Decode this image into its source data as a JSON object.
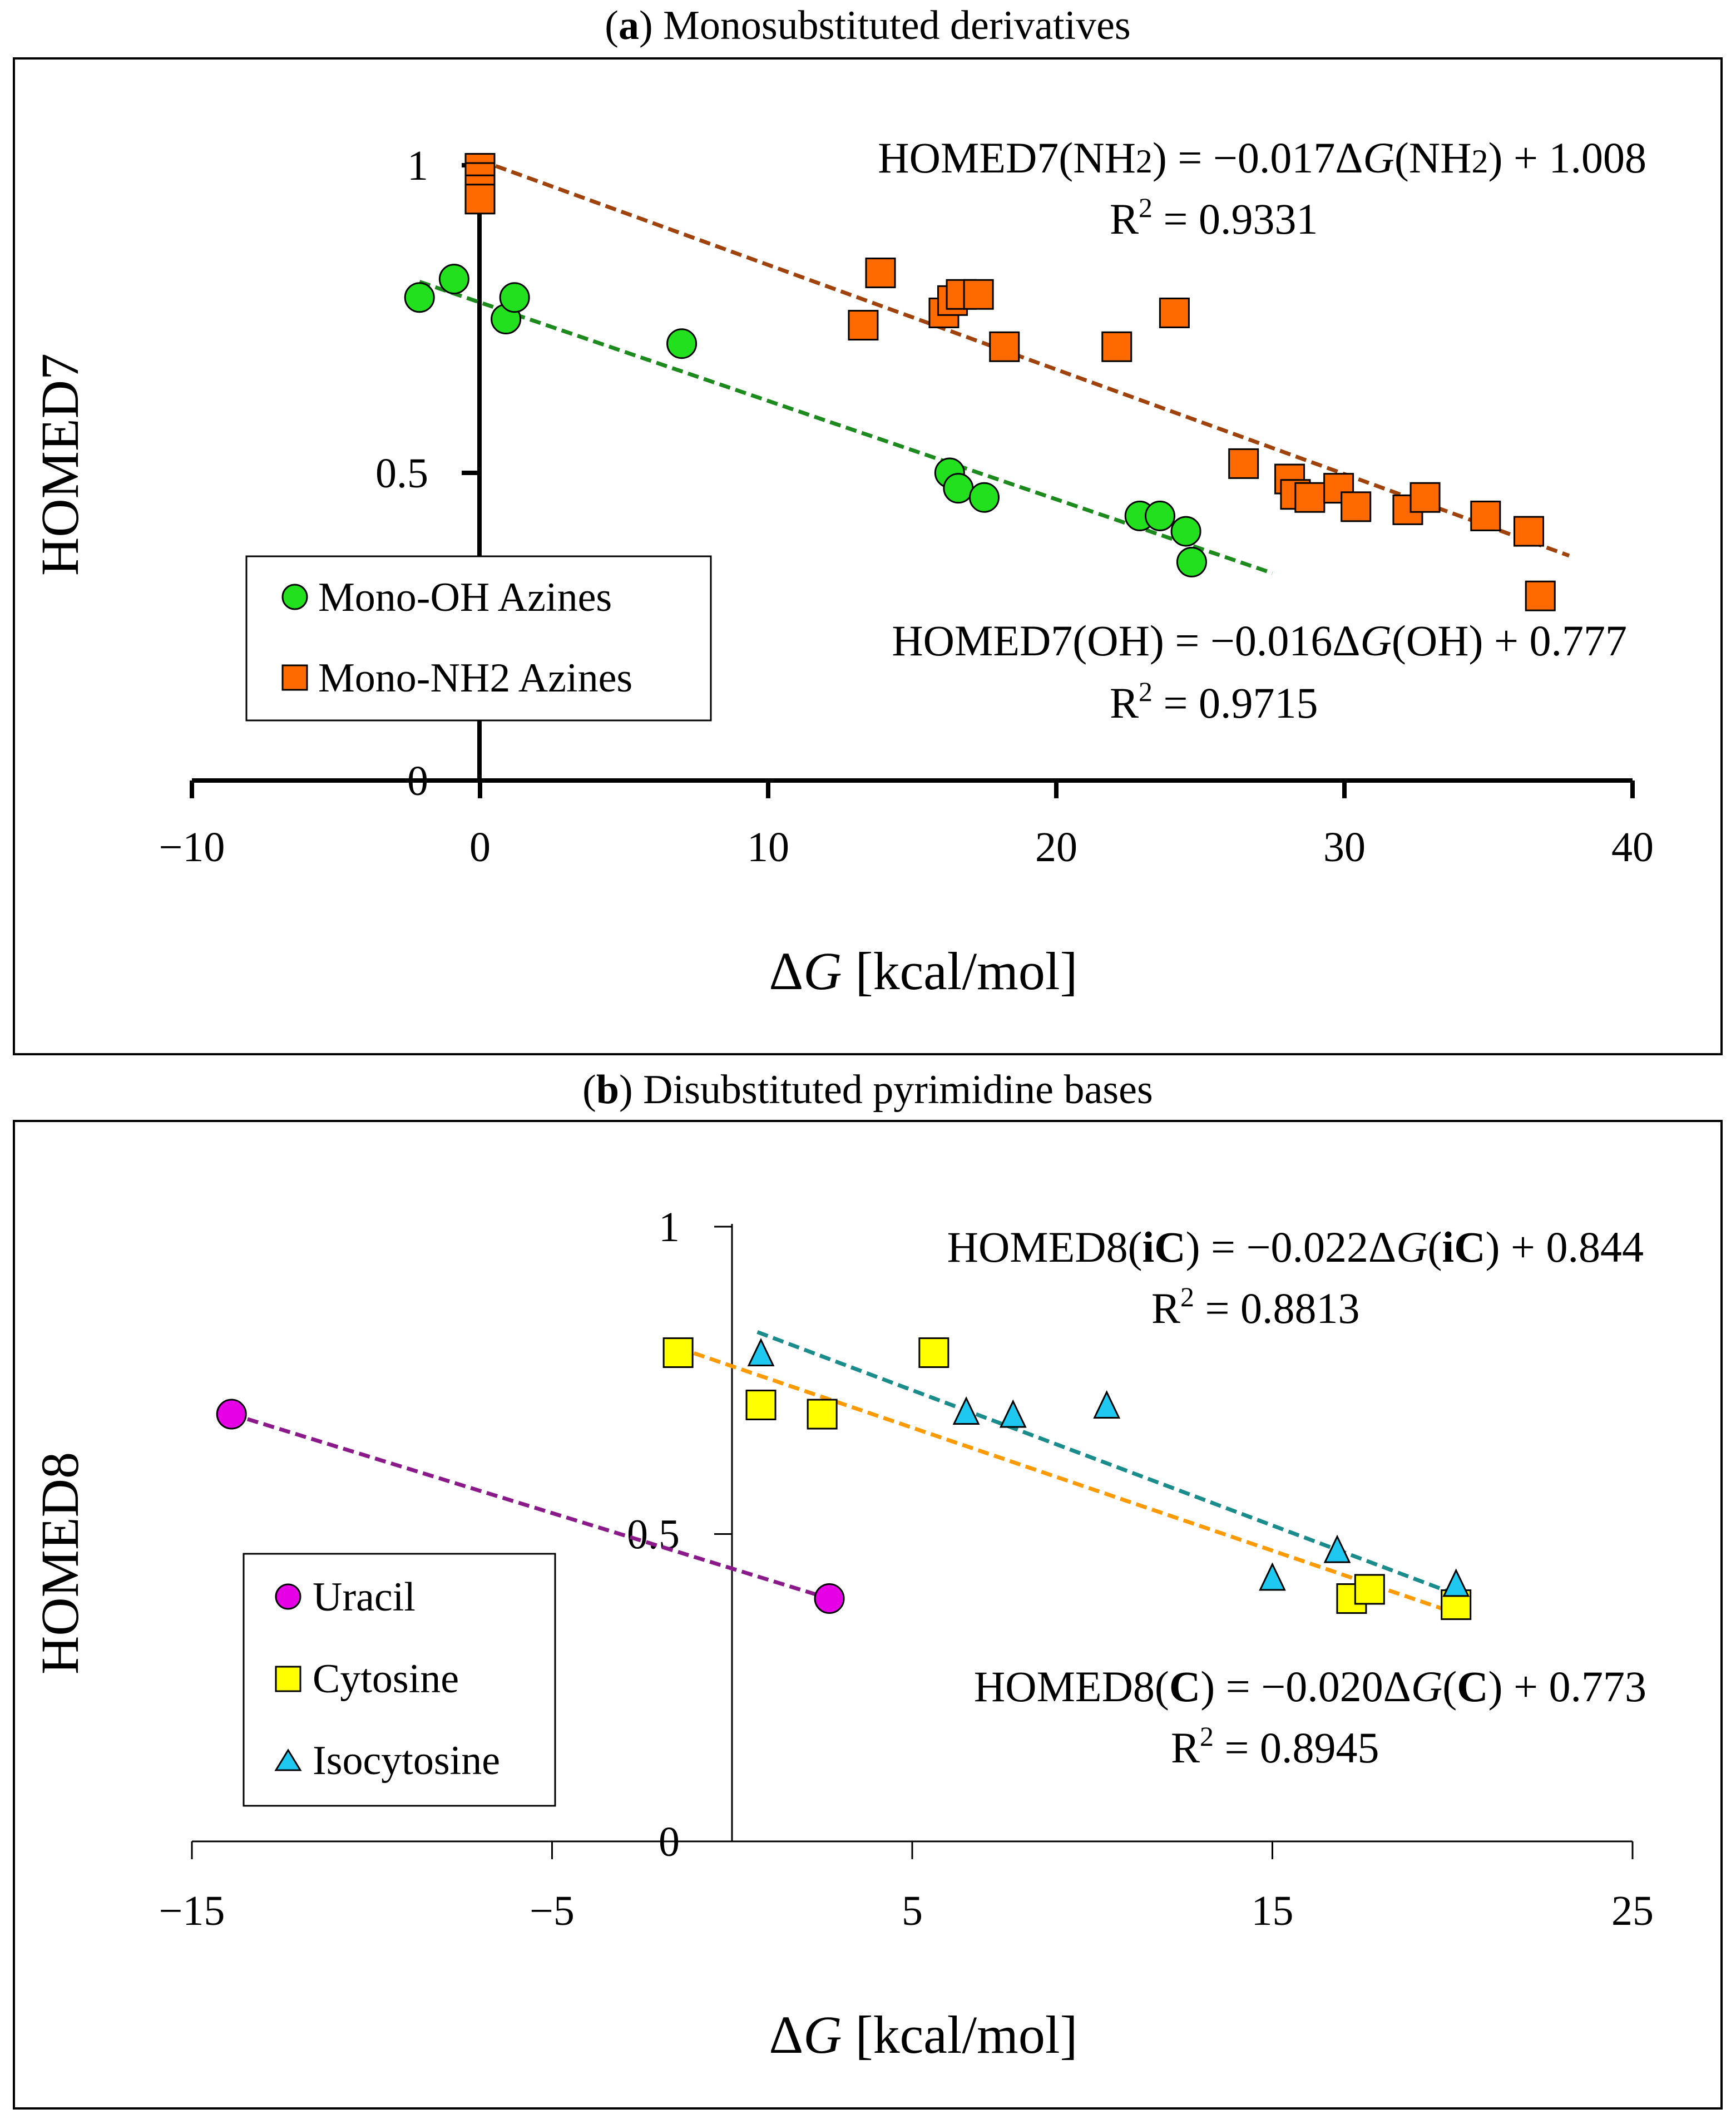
{
  "colors": {
    "oh": "#22e01e",
    "nh2": "#ff6a00",
    "oh_line": "#1d8a1d",
    "nh2_line": "#a0420c",
    "uracil": "#e600e6",
    "cytosine": "#ffff00",
    "isocytosine": "#1ec8f0",
    "uracil_line": "#8a1a8a",
    "cytosine_line": "#ff9a00",
    "isocytosine_line": "#1a8c8c"
  },
  "chart_data": [
    {
      "id": "a",
      "type": "scatter",
      "title_prefix": "(",
      "title_bold": "a",
      "title_rest": ") Monosubstituted derivatives",
      "xlabel_delta": "Δ",
      "xlabel_var": "G",
      "xlabel_unit": " [kcal/mol]",
      "ylabel": "HOMED7",
      "xlim": [
        -10,
        40
      ],
      "ylim": [
        0,
        1
      ],
      "xticks": [
        -10,
        0,
        10,
        20,
        30,
        40
      ],
      "xtick_labels": [
        "−10",
        "0",
        "10",
        "20",
        "30",
        "40"
      ],
      "yticks": [
        0,
        0.5,
        1
      ],
      "ytick_labels": [
        "0",
        "0.5",
        "1"
      ],
      "legend_position": "bottom-left",
      "series": [
        {
          "name": "Mono-OH Azines",
          "marker": "circle",
          "color_key": "oh",
          "x": [
            -2.1,
            -0.9,
            0.9,
            1.2,
            7.0,
            16.3,
            16.6,
            17.5,
            22.9,
            23.6,
            24.5,
            24.7
          ],
          "y": [
            0.785,
            0.815,
            0.75,
            0.785,
            0.71,
            0.5,
            0.475,
            0.46,
            0.43,
            0.43,
            0.405,
            0.355
          ]
        },
        {
          "name": "Mono-NH2 Azines",
          "marker": "square",
          "color_key": "nh2",
          "x": [
            0.0,
            0.0,
            0.0,
            0.0,
            13.3,
            13.9,
            16.1,
            16.4,
            16.7,
            17.3,
            18.2,
            22.1,
            24.1,
            26.5,
            28.1,
            28.3,
            28.8,
            29.8,
            30.4,
            32.2,
            32.8,
            34.9,
            36.4,
            36.8
          ],
          "y": [
            0.995,
            0.98,
            0.96,
            0.945,
            0.74,
            0.825,
            0.76,
            0.78,
            0.79,
            0.79,
            0.705,
            0.705,
            0.76,
            0.515,
            0.49,
            0.465,
            0.46,
            0.475,
            0.445,
            0.44,
            0.46,
            0.43,
            0.405,
            0.3
          ]
        }
      ],
      "fits": [
        {
          "series": "Mono-NH2 Azines",
          "color_key": "nh2_line",
          "slope": -0.017,
          "intercept": 1.008,
          "x_range": [
            0,
            37.8
          ],
          "equation_parts": [
            "HOMED7(NH",
            "2",
            ") = −0.017Δ",
            "G",
            "(NH",
            "2",
            ") + 1.008"
          ],
          "r2_value": " = 0.9331"
        },
        {
          "series": "Mono-OH Azines",
          "color_key": "oh_line",
          "slope": -0.016,
          "intercept": 0.777,
          "x_range": [
            -2.1,
            27.5
          ],
          "equation_parts": [
            "HOMED7(OH) = −0.016Δ",
            "G",
            "(OH) + 0.777"
          ],
          "r2_value": " = 0.9715"
        }
      ]
    },
    {
      "id": "b",
      "type": "scatter",
      "title_prefix": "(",
      "title_bold": "b",
      "title_rest": ") Disubstituted pyrimidine bases",
      "xlabel_delta": "Δ",
      "xlabel_var": "G",
      "xlabel_unit": " [kcal/mol]",
      "ylabel": "HOMED8",
      "xlim": [
        -15,
        25
      ],
      "ylim": [
        0,
        1
      ],
      "xticks": [
        -15,
        -5,
        5,
        15,
        25
      ],
      "xtick_labels": [
        "−15",
        "−5",
        "5",
        "15",
        "25"
      ],
      "yticks": [
        0,
        0.5,
        1
      ],
      "ytick_labels": [
        "0",
        "0.5",
        "1"
      ],
      "legend_position": "bottom-left",
      "series": [
        {
          "name": "Uracil",
          "marker": "circle",
          "color_key": "uracil",
          "x": [
            -13.9,
            2.7
          ],
          "y": [
            0.695,
            0.395
          ]
        },
        {
          "name": "Cytosine",
          "marker": "square",
          "color_key": "cytosine",
          "x": [
            -1.5,
            0.8,
            2.5,
            5.6,
            17.2,
            17.7,
            20.1
          ],
          "y": [
            0.795,
            0.71,
            0.695,
            0.795,
            0.395,
            0.41,
            0.385
          ]
        },
        {
          "name": "Isocytosine",
          "marker": "triangle",
          "color_key": "isocytosine",
          "x": [
            0.8,
            6.5,
            7.8,
            10.4,
            15.0,
            16.8,
            20.1
          ],
          "y": [
            0.795,
            0.7,
            0.695,
            0.71,
            0.43,
            0.475,
            0.42
          ]
        }
      ],
      "fits": [
        {
          "series": "Uracil",
          "color_key": "uracil_line",
          "x_range": [
            -13.9,
            2.7
          ],
          "y_range": [
            0.695,
            0.395
          ]
        },
        {
          "series": "Isocytosine",
          "color_key": "isocytosine_line",
          "slope": -0.022,
          "intercept": 0.844,
          "x_range": [
            0.7,
            20.2
          ],
          "equation_parts": [
            "HOMED8(",
            "iC",
            ") = −0.022Δ",
            "G",
            "(",
            "iC",
            ") + 0.844"
          ],
          "r2_value": " = 0.8813"
        },
        {
          "series": "Cytosine",
          "color_key": "cytosine_line",
          "slope": -0.02,
          "intercept": 0.773,
          "x_range": [
            -1.5,
            20.2
          ],
          "equation_parts": [
            "HOMED8(",
            "C",
            ") = −0.020Δ",
            "G",
            "(",
            "C",
            ") + 0.773"
          ],
          "r2_value": " = 0.8945"
        }
      ]
    }
  ],
  "r2_label": "R",
  "r2_sup": "2"
}
